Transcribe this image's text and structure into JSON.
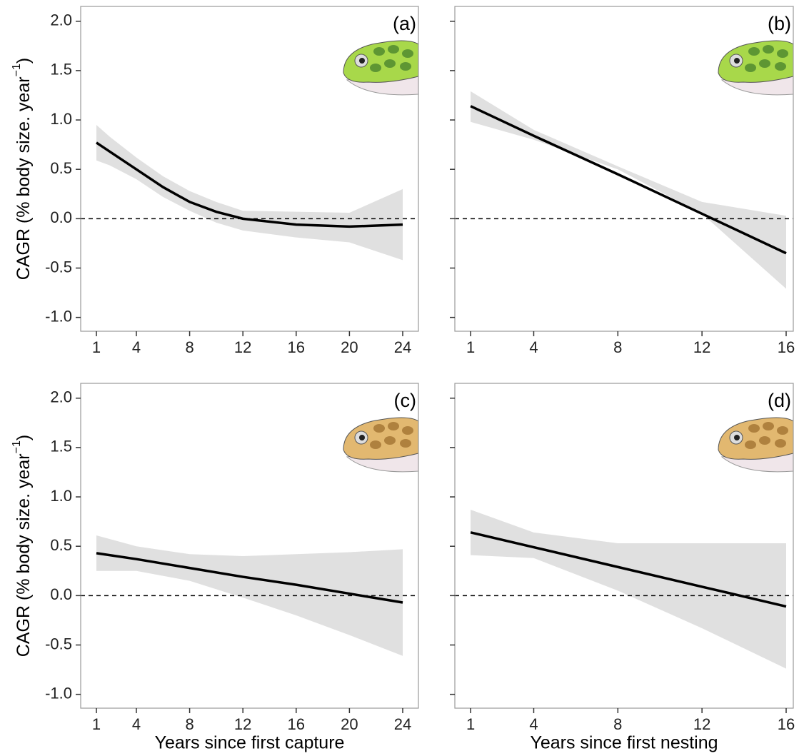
{
  "chart_data": [
    {
      "type": "line",
      "panel_label": "(a)",
      "ylabel": [
        "CAGR (% body size. year",
        "−1",
        ")"
      ],
      "x": [
        1,
        2,
        4,
        6,
        8,
        10,
        12,
        16,
        20,
        24
      ],
      "values": [
        0.77,
        0.68,
        0.5,
        0.32,
        0.17,
        0.07,
        0.0,
        -0.06,
        -0.08,
        -0.06
      ],
      "lower": [
        0.59,
        0.54,
        0.4,
        0.22,
        0.08,
        -0.04,
        -0.12,
        -0.19,
        -0.24,
        -0.42
      ],
      "upper": [
        0.95,
        0.83,
        0.62,
        0.43,
        0.28,
        0.17,
        0.08,
        0.07,
        0.06,
        0.3
      ],
      "color": "#000000",
      "band_color": "#e0e0e0",
      "hline": 0,
      "xlim": [
        -0.18,
        25.18
      ],
      "xticks": [
        1,
        4,
        8,
        12,
        16,
        20,
        24
      ],
      "ylim": [
        -1.14,
        2.15
      ],
      "yticks": [
        {
          "value": -1,
          "label": "-1.0"
        },
        -0.5,
        {
          "value": 0,
          "label": "0.0"
        },
        0.5,
        {
          "value": 1,
          "label": "1.0"
        },
        1.5,
        {
          "value": 2,
          "label": "2.0"
        }
      ]
    },
    {
      "type": "line",
      "panel_label": "(b)",
      "x": [
        1,
        4,
        8,
        12,
        16
      ],
      "values": [
        1.14,
        0.84,
        0.45,
        0.05,
        -0.35
      ],
      "lower": [
        0.98,
        0.8,
        0.5,
        0.05,
        -0.71
      ],
      "upper": [
        1.29,
        0.9,
        0.53,
        0.17,
        0.03
      ],
      "color": "#000000",
      "band_color": "#e0e0e0",
      "hline": 0,
      "xlim": [
        0.25,
        16.34
      ],
      "xticks": [
        1,
        4,
        8,
        12,
        16
      ],
      "ylim": [
        -1.14,
        2.15
      ],
      "yticks": [
        -1,
        -0.5,
        0,
        0.5,
        1,
        1.5,
        2
      ],
      "ytick_labels": false
    },
    {
      "type": "line",
      "panel_label": "(c)",
      "ylabel": [
        "CAGR (% body size. year",
        "−1",
        ")"
      ],
      "xlabel": "Years since first capture",
      "x": [
        1,
        4,
        8,
        12,
        16,
        20,
        24
      ],
      "values": [
        0.43,
        0.37,
        0.28,
        0.19,
        0.11,
        0.02,
        -0.07
      ],
      "lower": [
        0.25,
        0.25,
        0.15,
        -0.02,
        -0.2,
        -0.4,
        -0.61
      ],
      "upper": [
        0.61,
        0.5,
        0.42,
        0.4,
        0.42,
        0.44,
        0.47
      ],
      "color": "#000000",
      "band_color": "#e0e0e0",
      "hline": 0,
      "xlim": [
        -0.18,
        25.18
      ],
      "xticks": [
        1,
        4,
        8,
        12,
        16,
        20,
        24
      ],
      "ylim": [
        -1.14,
        2.15
      ],
      "yticks": [
        {
          "value": -1,
          "label": "-1.0"
        },
        -0.5,
        {
          "value": 0,
          "label": "0.0"
        },
        0.5,
        {
          "value": 1,
          "label": "1.0"
        },
        1.5,
        {
          "value": 2,
          "label": "2.0"
        }
      ]
    },
    {
      "type": "line",
      "panel_label": "(d)",
      "xlabel": "Years since first nesting",
      "x": [
        1,
        4,
        8,
        12,
        16
      ],
      "values": [
        0.64,
        0.49,
        0.29,
        0.09,
        -0.11
      ],
      "lower": [
        0.41,
        0.38,
        0.05,
        -0.33,
        -0.74
      ],
      "upper": [
        0.87,
        0.64,
        0.53,
        0.53,
        0.53
      ],
      "color": "#000000",
      "band_color": "#e0e0e0",
      "hline": 0,
      "xlim": [
        0.25,
        16.34
      ],
      "xticks": [
        1,
        4,
        8,
        12,
        16
      ],
      "ylim": [
        -1.14,
        2.15
      ],
      "yticks": [
        -1,
        -0.5,
        0,
        0.5,
        1,
        1.5,
        2
      ],
      "ytick_labels": false
    }
  ]
}
